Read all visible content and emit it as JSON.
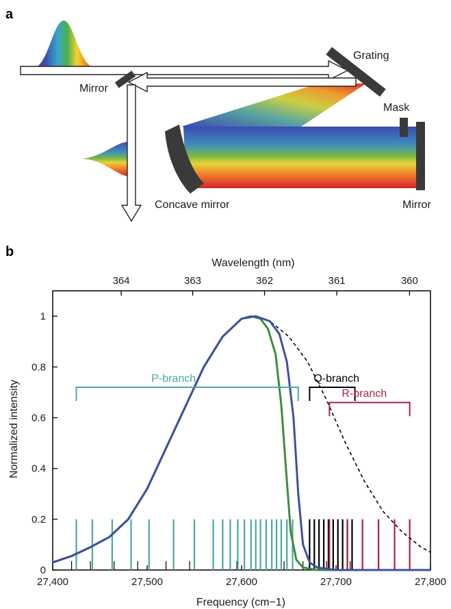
{
  "panel_a": {
    "label": "a",
    "labels": {
      "grating": "Grating",
      "mirror_left": "Mirror",
      "mask": "Mask",
      "concave_mirror": "Concave mirror",
      "mirror_right": "Mirror"
    }
  },
  "panel_b": {
    "label": "b"
  },
  "chart_data": {
    "type": "line",
    "xlabel": "Frequency (cm−1)",
    "ylabel": "Normalized intensity",
    "top_axis_label": "Wavelength (nm)",
    "xlim": [
      27400,
      27800
    ],
    "ylim": [
      0,
      1.1
    ],
    "x_ticks": [
      27400,
      27500,
      27600,
      27700,
      27800
    ],
    "x_tick_labels": [
      "27,400",
      "27,500",
      "27,600",
      "27,700",
      "27,800"
    ],
    "y_ticks": [
      0,
      0.2,
      0.4,
      0.6,
      0.8,
      1
    ],
    "y_tick_labels": [
      "0",
      "0.2",
      "0.4",
      "0.6",
      "0.8",
      "1"
    ],
    "top_ticks_nm": [
      364,
      363,
      362,
      361,
      360
    ],
    "top_tick_labels": [
      "364",
      "363",
      "362",
      "361",
      "360"
    ],
    "colors": {
      "dashed": "#000000",
      "blue": "#3d4fa0",
      "green": "#3e8a3f",
      "p_branch": "#4ca6a1",
      "q_branch": "#000000",
      "r_branch": "#a8213f"
    },
    "series": [
      {
        "style": "dashed",
        "x": [
          27400,
          27420,
          27440,
          27460,
          27480,
          27500,
          27520,
          27540,
          27560,
          27580,
          27600,
          27615,
          27630,
          27650,
          27670,
          27690,
          27710,
          27730,
          27750,
          27770,
          27790,
          27800
        ],
        "y": [
          0.03,
          0.055,
          0.09,
          0.13,
          0.2,
          0.32,
          0.48,
          0.64,
          0.8,
          0.92,
          0.99,
          1.0,
          0.98,
          0.92,
          0.82,
          0.67,
          0.5,
          0.35,
          0.23,
          0.15,
          0.09,
          0.07
        ]
      },
      {
        "style": "blue",
        "x": [
          27400,
          27420,
          27440,
          27460,
          27480,
          27500,
          27520,
          27540,
          27560,
          27580,
          27600,
          27615,
          27630,
          27640,
          27648,
          27655,
          27660,
          27665,
          27672,
          27680,
          27700,
          27800
        ],
        "y": [
          0.03,
          0.055,
          0.09,
          0.13,
          0.2,
          0.32,
          0.48,
          0.64,
          0.8,
          0.92,
          0.99,
          1.0,
          0.98,
          0.93,
          0.82,
          0.6,
          0.3,
          0.1,
          0.03,
          0.01,
          0,
          0
        ]
      },
      {
        "style": "green",
        "x": [
          27400,
          27420,
          27440,
          27460,
          27480,
          27500,
          27520,
          27540,
          27560,
          27580,
          27600,
          27610,
          27620,
          27628,
          27636,
          27642,
          27648,
          27652,
          27658,
          27665,
          27680,
          27800
        ],
        "y": [
          0.03,
          0.055,
          0.09,
          0.13,
          0.2,
          0.32,
          0.48,
          0.64,
          0.8,
          0.92,
          0.99,
          1.0,
          0.99,
          0.95,
          0.85,
          0.65,
          0.35,
          0.15,
          0.04,
          0.01,
          0,
          0
        ]
      }
    ],
    "branches": [
      {
        "name": "P-branch",
        "x_start": 27425,
        "x_end": 27660,
        "y": 0.72
      },
      {
        "name": "Q-branch",
        "x_start": 27672,
        "x_end": 27720,
        "y": 0.72
      },
      {
        "name": "R-branch",
        "x_start": 27693,
        "x_end": 27778,
        "y": 0.66
      }
    ],
    "lines_p": [
      27425,
      27442,
      27463,
      27483,
      27502,
      27528,
      27550,
      27570,
      27580,
      27588,
      27596,
      27603,
      27610,
      27615,
      27620,
      27626,
      27632,
      27637,
      27642,
      27648,
      27654
    ],
    "lines_q": [
      27672,
      27677,
      27682,
      27687,
      27692,
      27697,
      27702,
      27707,
      27712,
      27717
    ],
    "lines_r": [
      27693,
      27712,
      27728,
      27745,
      27762,
      27778
    ],
    "short_ticks": [
      27420,
      27440,
      27465,
      27490,
      27520,
      27545,
      27570,
      27595,
      27620,
      27645,
      27665,
      27690,
      27715
    ],
    "line_height": 0.2
  }
}
